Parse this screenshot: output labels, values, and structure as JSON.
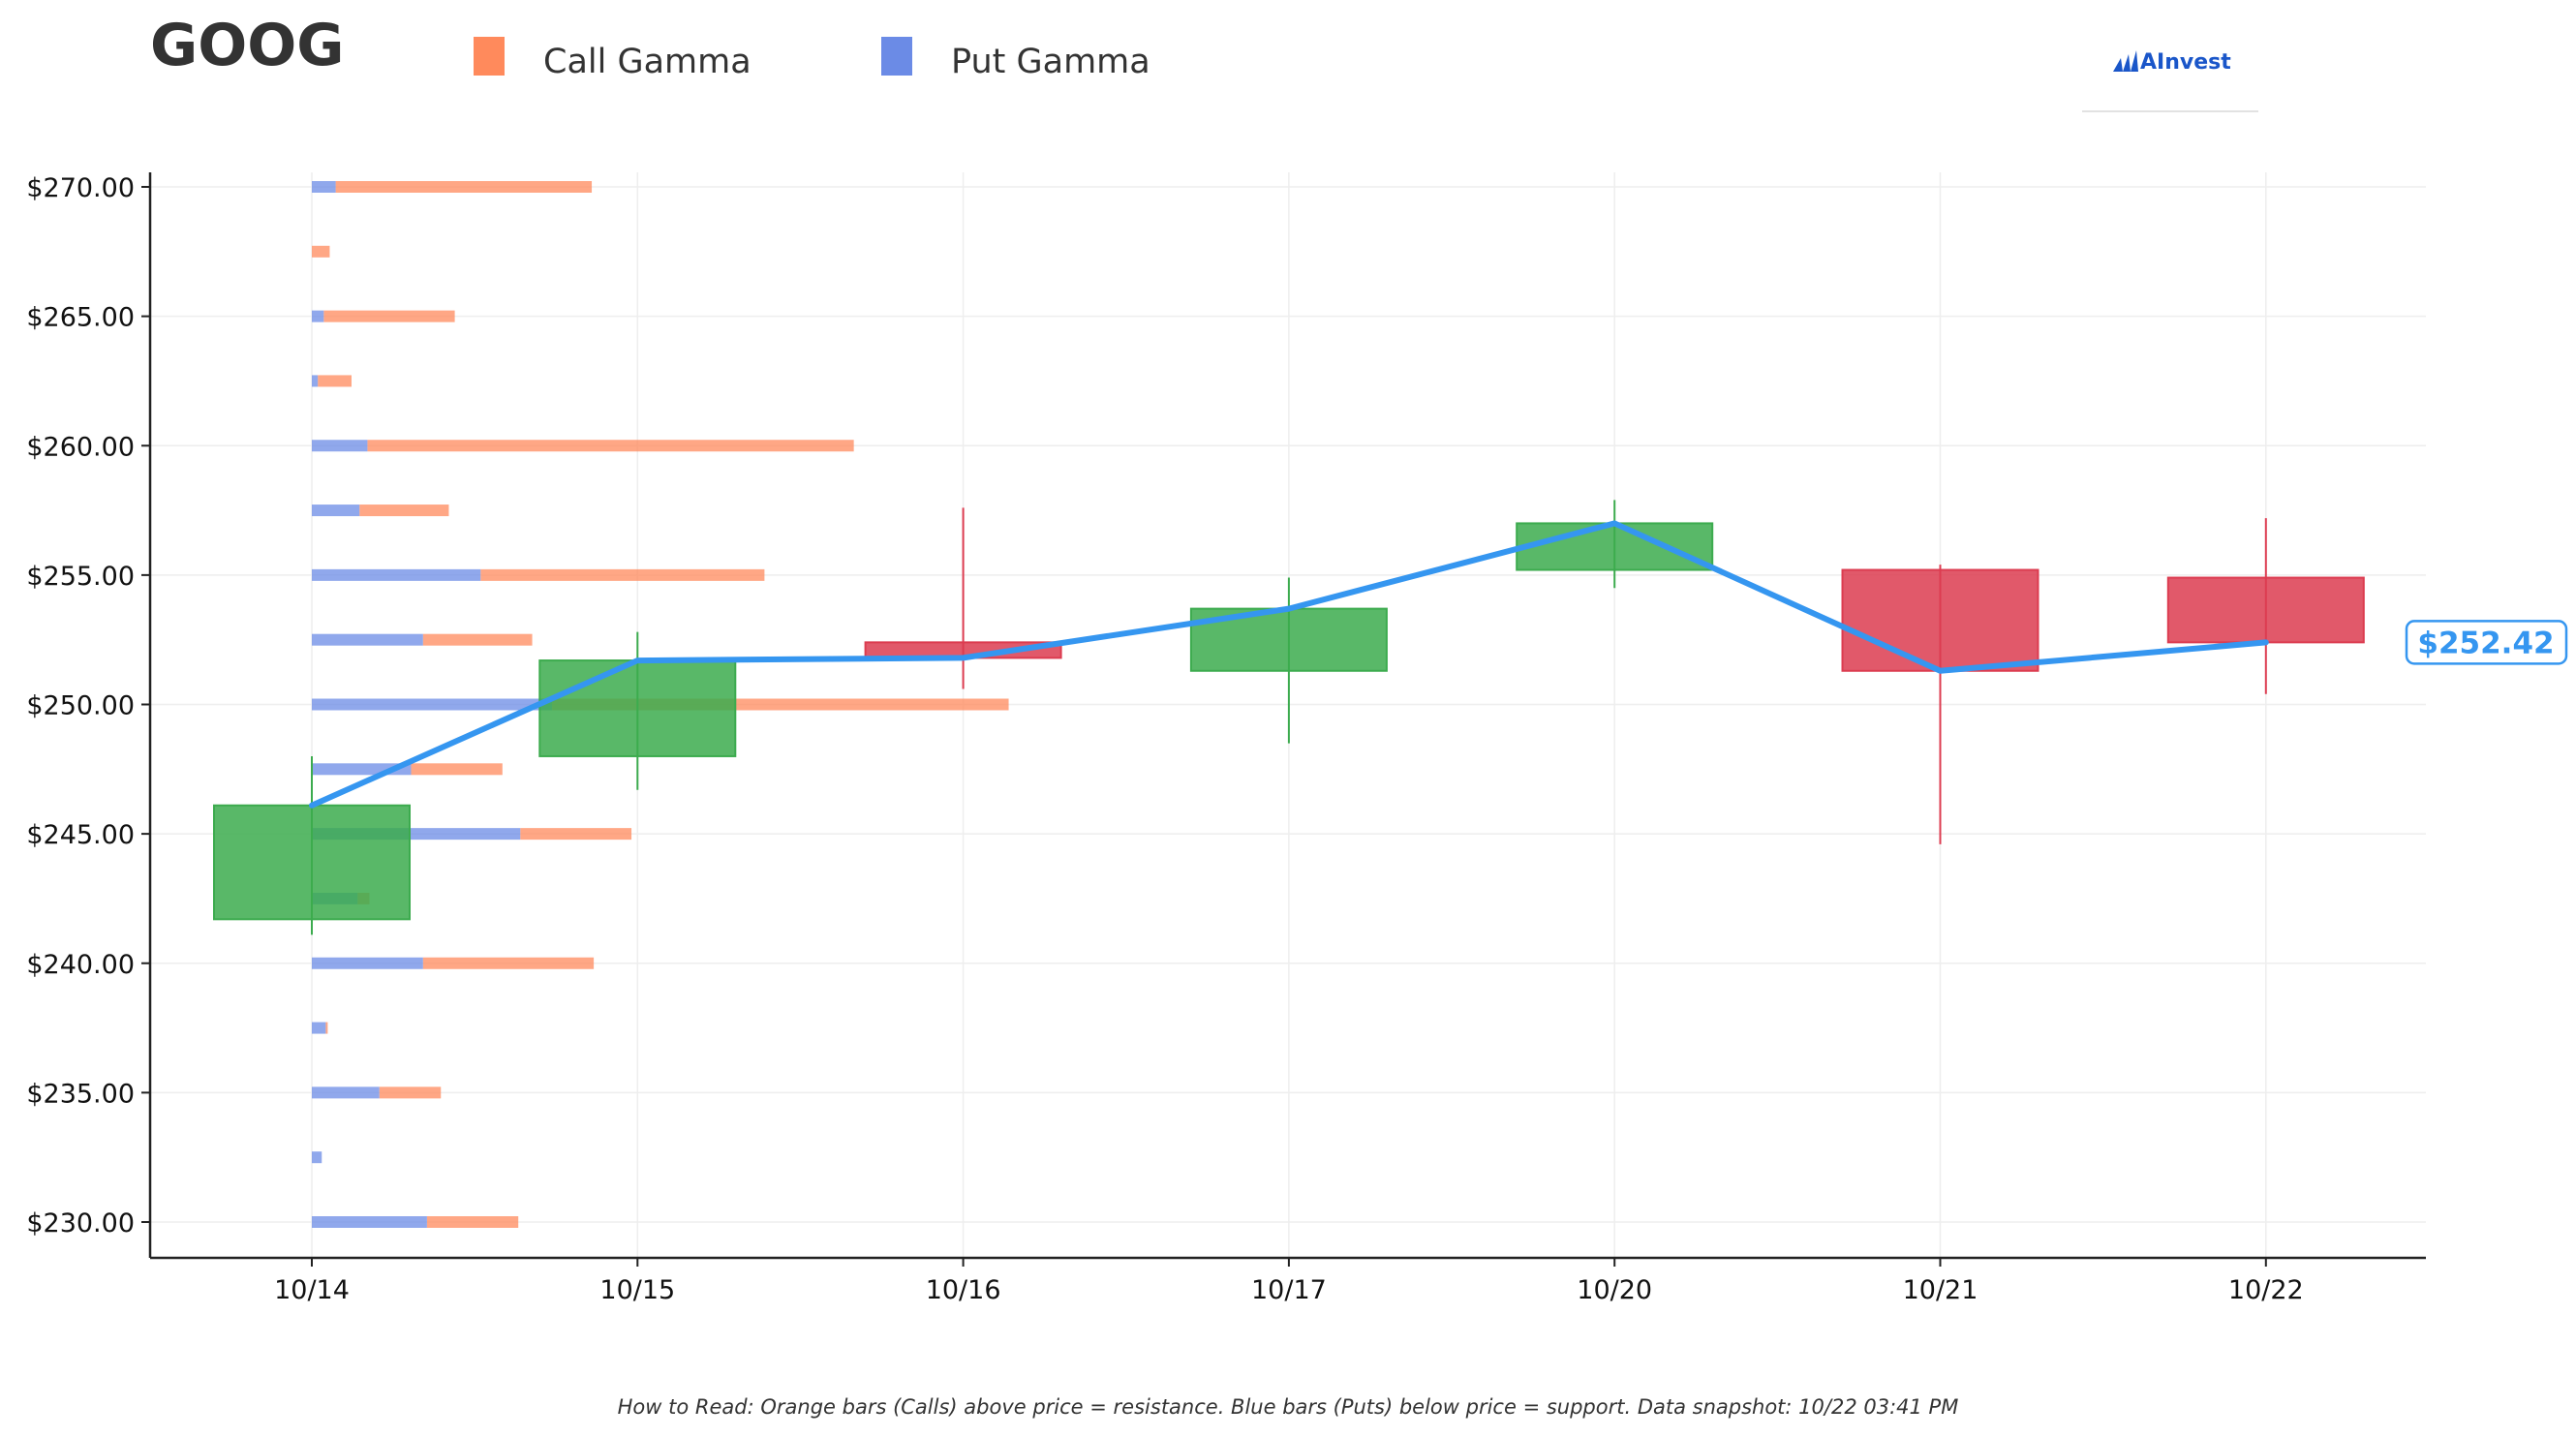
{
  "header": {
    "ticker": "GOOG",
    "logo_text": "AInvest"
  },
  "legend": [
    {
      "label": "Call Gamma",
      "color": "#FF8A5C"
    },
    {
      "label": "Put Gamma",
      "color": "#6B8BE6"
    }
  ],
  "footnote": "How to Read: Orange bars (Calls) above price = resistance. Blue bars (Puts) below price = support. Data snapshot: 10/22 03:41 PM",
  "chart_data": {
    "type": "candlestick",
    "title": "GOOG",
    "categories": [
      "10/14",
      "10/15",
      "10/16",
      "10/17",
      "10/20",
      "10/21",
      "10/22"
    ],
    "ylim": [
      228.6,
      270.5
    ],
    "y_ticks": [
      230,
      235,
      240,
      245,
      250,
      255,
      260,
      265,
      270
    ],
    "y_tick_labels": [
      "$230.00",
      "$235.00",
      "$240.00",
      "$245.00",
      "$250.00",
      "$255.00",
      "$260.00",
      "$265.00",
      "$270.00"
    ],
    "grid": true,
    "ohlc": [
      {
        "date": "10/14",
        "open": 241.7,
        "high": 248.0,
        "low": 241.1,
        "close": 246.1
      },
      {
        "date": "10/15",
        "open": 248.0,
        "high": 252.8,
        "low": 246.7,
        "close": 251.7
      },
      {
        "date": "10/16",
        "open": 252.4,
        "high": 257.6,
        "low": 250.6,
        "close": 251.8
      },
      {
        "date": "10/17",
        "open": 251.3,
        "high": 254.9,
        "low": 248.5,
        "close": 253.7
      },
      {
        "date": "10/20",
        "open": 255.2,
        "high": 257.9,
        "low": 254.5,
        "close": 257.0
      },
      {
        "date": "10/21",
        "open": 255.2,
        "high": 255.4,
        "low": 244.6,
        "close": 251.3
      },
      {
        "date": "10/22",
        "open": 254.9,
        "high": 257.2,
        "low": 250.4,
        "close": 252.4
      }
    ],
    "close_line": [
      246.1,
      251.7,
      251.8,
      253.7,
      257.0,
      251.3,
      252.4
    ],
    "last_price_label": "$252.42",
    "colors": {
      "up": "#3CAB4E",
      "down": "#DC3C50",
      "line": "#3596F0",
      "call": "#FF8A5C",
      "put": "#6B8BE6"
    },
    "gamma_strikes": [
      230,
      232.5,
      235,
      237.5,
      240,
      242.5,
      245,
      247.5,
      250,
      252.5,
      255,
      257.5,
      260,
      262.5,
      265,
      267.5,
      270
    ],
    "put_gamma": [
      0.58,
      0.05,
      0.34,
      0.07,
      0.56,
      0.23,
      1.05,
      0.5,
      1.21,
      0.56,
      0.85,
      0.24,
      0.28,
      0.03,
      0.06,
      0.0,
      0.12
    ],
    "call_gamma": [
      0.46,
      0.0,
      0.31,
      0.01,
      0.86,
      0.06,
      0.56,
      0.46,
      2.3,
      0.55,
      1.43,
      0.45,
      2.45,
      0.17,
      0.66,
      0.09,
      1.29
    ]
  }
}
